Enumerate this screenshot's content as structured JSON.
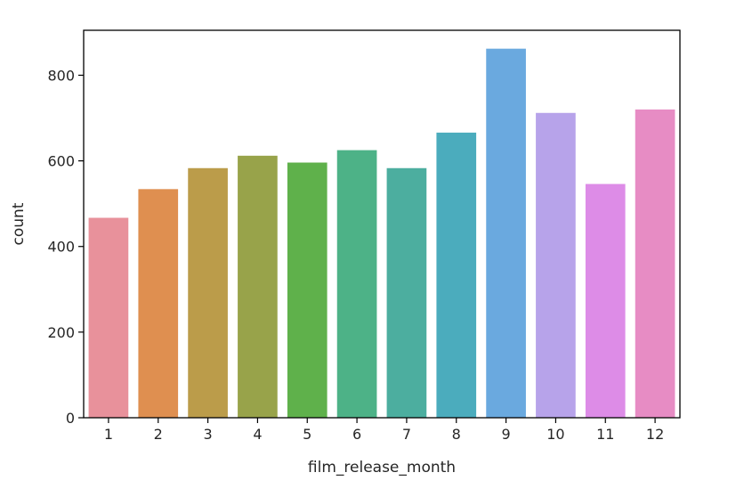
{
  "chart_data": {
    "type": "bar",
    "title": "",
    "xlabel": "film_release_month",
    "ylabel": "count",
    "categories": [
      "1",
      "2",
      "3",
      "4",
      "5",
      "6",
      "7",
      "8",
      "9",
      "10",
      "11",
      "12"
    ],
    "values": [
      467,
      534,
      583,
      612,
      596,
      625,
      583,
      666,
      862,
      712,
      546,
      720
    ],
    "ylim": [
      0,
      905
    ],
    "yticks": [
      0,
      200,
      400,
      600,
      800
    ],
    "grid": false,
    "legend": "none",
    "colors": [
      "#e8919b",
      "#df8f50",
      "#bb9c4a",
      "#98a34a",
      "#5fb14b",
      "#4db287",
      "#4cae9f",
      "#4bacbd",
      "#6aa9df",
      "#b7a3ea",
      "#dd8ce7",
      "#e78cc4"
    ]
  }
}
